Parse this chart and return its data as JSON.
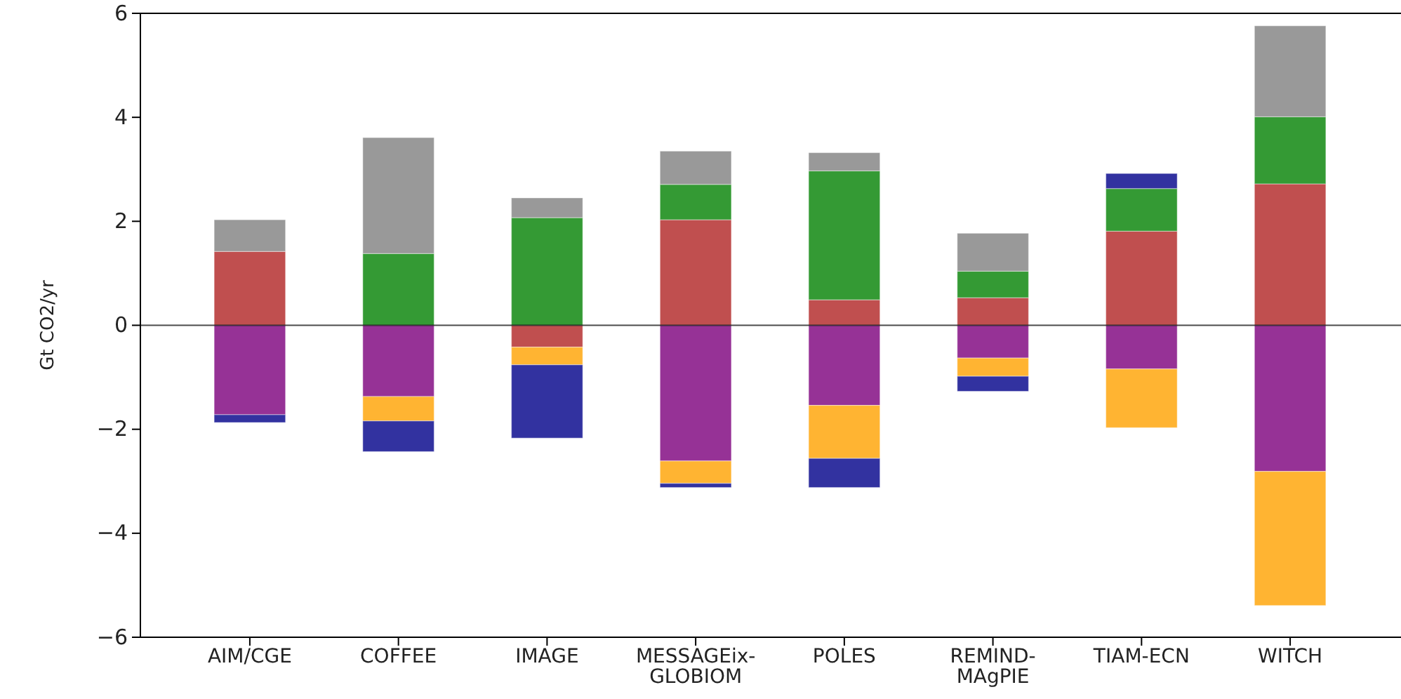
{
  "chart_data": {
    "type": "bar",
    "stacked": true,
    "ylabel": "Gt CO2/yr",
    "categories": [
      "AIM/CGE",
      "COFFEE",
      "IMAGE",
      "MESSAGEix-\nGLOBIOM",
      "POLES",
      "REMIND-\nMAgPIE",
      "TIAM-ECN",
      "WITCH"
    ],
    "series": [
      {
        "color": "#c04f4f",
        "values": [
          1.42,
          0,
          -0.42,
          2.03,
          0.49,
          0.53,
          1.81,
          2.72
        ]
      },
      {
        "color": "#349a34",
        "values": [
          0,
          1.38,
          2.07,
          0.68,
          2.48,
          0.51,
          0.82,
          1.29
        ]
      },
      {
        "color": "#999999",
        "values": [
          0.61,
          2.23,
          0.38,
          0.64,
          0.35,
          0.73,
          0,
          1.75
        ]
      },
      {
        "color": "#963296",
        "values": [
          -1.72,
          -1.37,
          0,
          -2.61,
          -1.54,
          -0.63,
          -0.84,
          -2.81
        ]
      },
      {
        "color": "#ffb432",
        "values": [
          0,
          -0.47,
          -0.34,
          -0.43,
          -1.02,
          -0.35,
          -1.13,
          -2.58
        ]
      },
      {
        "color": "#3232a0",
        "values": [
          -0.15,
          -0.59,
          -1.41,
          -0.08,
          -0.56,
          -0.29,
          0.29,
          0
        ]
      }
    ],
    "ylim": [
      -6,
      6
    ],
    "yticks": [
      {
        "value": -6,
        "label": "−6"
      },
      {
        "value": -4,
        "label": "−4"
      },
      {
        "value": -2,
        "label": "−2"
      },
      0,
      2,
      4,
      6
    ],
    "ref_lines": [
      {
        "axis": "y",
        "value": 0,
        "color": "#000000"
      }
    ],
    "grid": false
  }
}
